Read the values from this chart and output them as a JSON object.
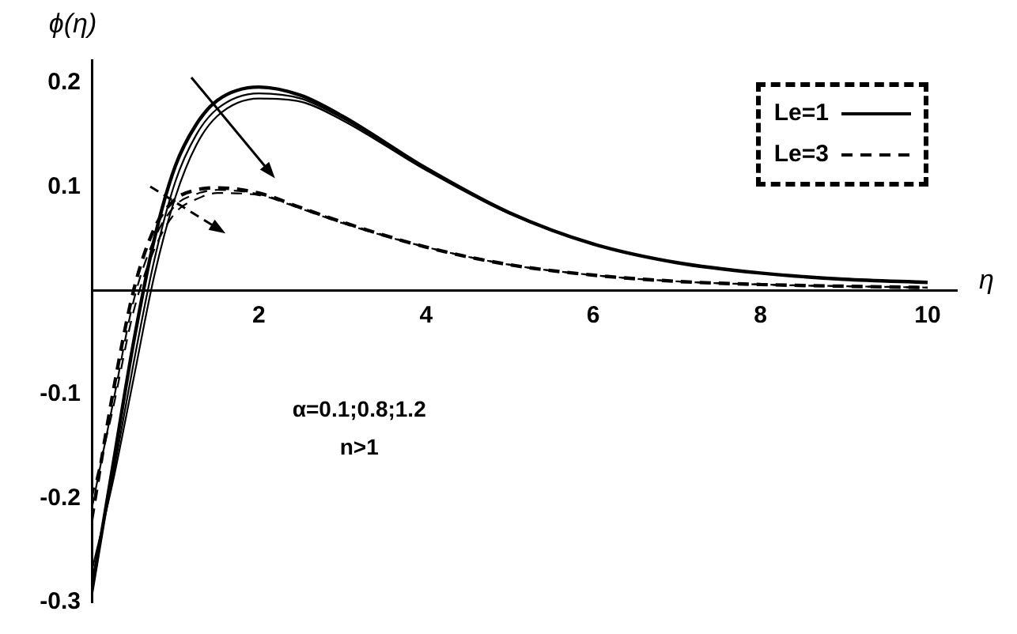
{
  "chart_data": {
    "type": "line",
    "xlabel": "η",
    "ylabel": "ϕ(η)",
    "xlim": [
      0,
      10.35
    ],
    "ylim": [
      -0.3,
      0.222
    ],
    "xticks": [
      2,
      4,
      6,
      8,
      10
    ],
    "yticks": [
      -0.3,
      -0.2,
      -0.1,
      0.1,
      0.2
    ],
    "grid": false,
    "legend": "top right",
    "marker": "none",
    "annotations": [
      "α=0.1;0.8;1.2",
      "n>1"
    ],
    "series": [
      {
        "name": "Le=1",
        "color": "#000000",
        "line_style": "solid",
        "x": [
          0,
          0.25,
          0.5,
          0.75,
          1,
          1.25,
          1.5,
          2,
          2.5,
          3,
          4,
          5,
          6,
          7,
          8,
          9,
          10
        ],
        "values": [
          -0.29,
          -0.17,
          -0.05,
          0.05,
          0.12,
          0.16,
          0.183,
          0.196,
          0.188,
          0.168,
          0.118,
          0.075,
          0.045,
          0.027,
          0.017,
          0.011,
          0.008
        ]
      },
      {
        "color": "#000000",
        "line_style": "solid",
        "x": [
          0,
          0.25,
          0.5,
          0.75,
          1,
          1.25,
          1.5,
          2,
          2.5,
          3,
          4,
          5,
          6,
          7,
          8,
          9,
          10
        ],
        "values": [
          -0.28,
          -0.18,
          -0.07,
          0.03,
          0.105,
          0.15,
          0.175,
          0.19,
          0.185,
          0.166,
          0.117,
          0.075,
          0.045,
          0.027,
          0.017,
          0.011,
          0.008
        ]
      },
      {
        "color": "#000000",
        "line_style": "solid",
        "x": [
          0,
          0.25,
          0.5,
          0.75,
          1,
          1.25,
          1.5,
          2,
          2.5,
          3,
          4,
          5,
          6,
          7,
          8,
          9,
          10
        ],
        "values": [
          -0.27,
          -0.185,
          -0.085,
          0.015,
          0.09,
          0.14,
          0.168,
          0.185,
          0.182,
          0.164,
          0.116,
          0.074,
          0.045,
          0.027,
          0.017,
          0.011,
          0.008
        ]
      },
      {
        "name": "Le=3",
        "color": "#000000",
        "line_style": "dashed",
        "x": [
          0,
          0.25,
          0.5,
          0.75,
          1,
          1.25,
          1.5,
          2,
          2.5,
          3,
          4,
          5,
          6,
          7,
          8,
          10
        ],
        "values": [
          -0.22,
          -0.1,
          0.0,
          0.06,
          0.088,
          0.097,
          0.099,
          0.094,
          0.08,
          0.066,
          0.042,
          0.025,
          0.015,
          0.009,
          0.006,
          0.003
        ]
      },
      {
        "color": "#000000",
        "line_style": "dashed",
        "x": [
          0,
          0.25,
          0.5,
          0.75,
          1,
          1.25,
          1.5,
          2,
          2.5,
          3,
          4,
          5,
          6,
          7,
          8,
          10
        ],
        "values": [
          -0.21,
          -0.11,
          -0.01,
          0.05,
          0.082,
          0.093,
          0.097,
          0.093,
          0.08,
          0.066,
          0.042,
          0.025,
          0.015,
          0.009,
          0.006,
          0.003
        ]
      },
      {
        "color": "#000000",
        "line_style": "dashed",
        "x": [
          0,
          0.25,
          0.5,
          0.75,
          1,
          1.25,
          1.5,
          2,
          2.5,
          3,
          4,
          5,
          6,
          7,
          8,
          10
        ],
        "values": [
          -0.2,
          -0.115,
          -0.02,
          0.04,
          0.075,
          0.088,
          0.094,
          0.092,
          0.079,
          0.065,
          0.042,
          0.025,
          0.015,
          0.009,
          0.006,
          0.003
        ]
      }
    ]
  }
}
